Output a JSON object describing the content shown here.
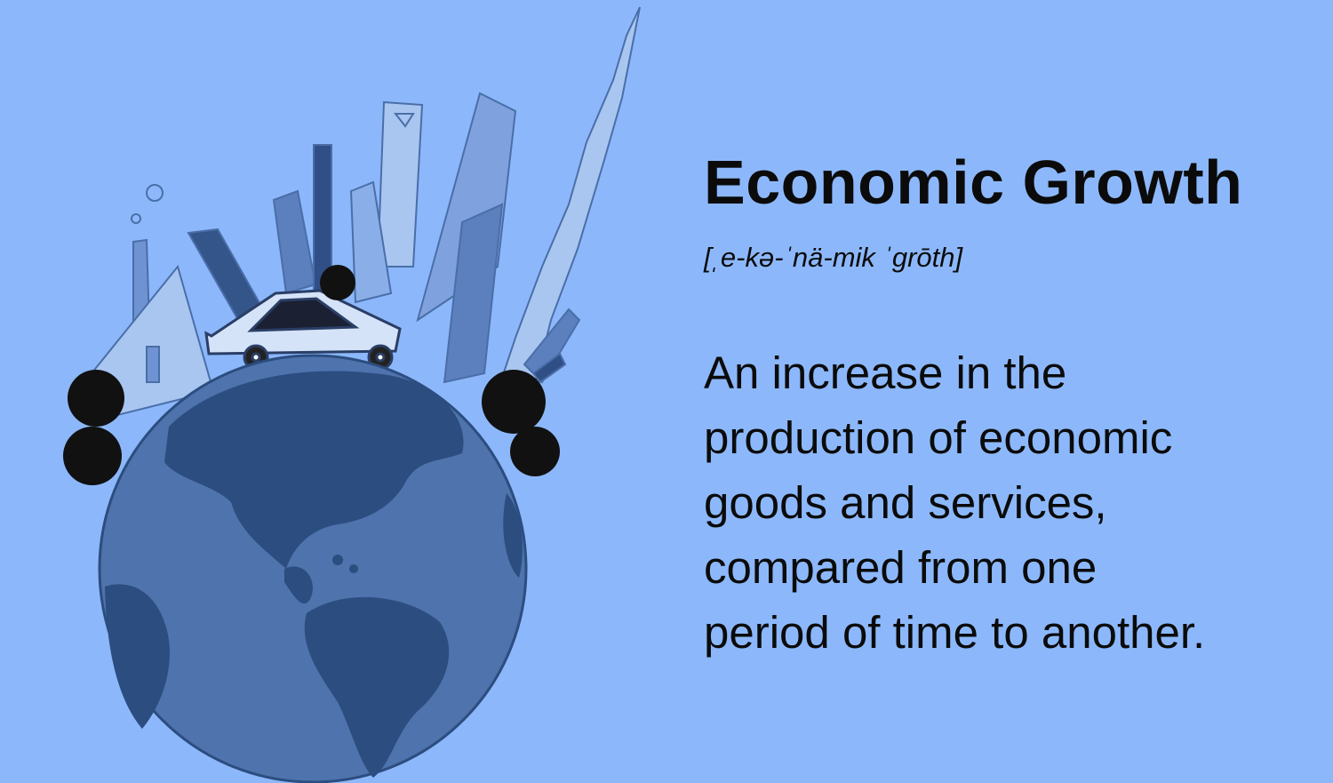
{
  "illustration": {
    "subject": "globe with city skyline and car",
    "colors": {
      "background": "#8cb8fb",
      "ocean": "#4e73ad",
      "land": "#2c4d7f",
      "building_light": "#a9c6f0",
      "building_dark": "#34558a",
      "tree": "#111111"
    }
  },
  "term": "Economic Growth",
  "pronunciation": "[ˌe-kə-ˈnä-mik ˈgrōth]",
  "definition": {
    "lines": [
      "An increase in the",
      "production of economic",
      "goods and services,",
      "compared from one",
      "period of time to another."
    ]
  }
}
